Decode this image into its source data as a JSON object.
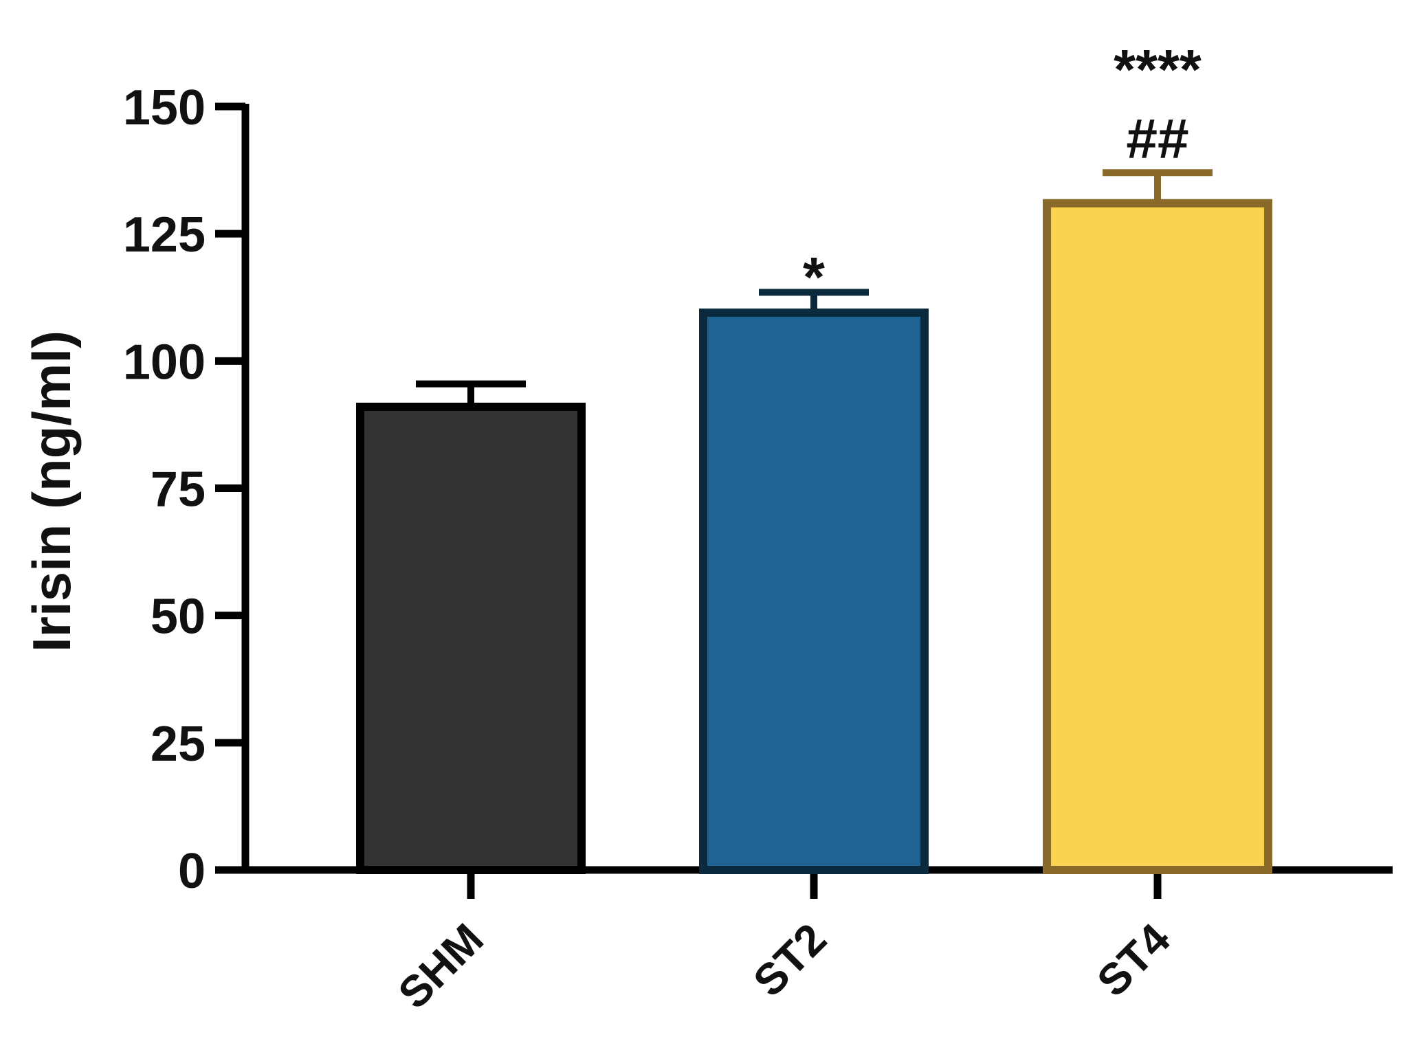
{
  "chart_data": {
    "type": "bar",
    "ylabel": "Irisin (ng/ml)",
    "xlabel": "",
    "ylim": [
      0,
      150
    ],
    "yticks": [
      "0",
      "25",
      "50",
      "75",
      "100",
      "125",
      "150"
    ],
    "grid": false,
    "categories": [
      "SHM",
      "ST2",
      "ST4"
    ],
    "values": [
      91,
      109.5,
      131
    ],
    "errors": [
      4.5,
      4,
      6
    ],
    "annotations": [
      {
        "category": "SHM",
        "lines": []
      },
      {
        "category": "ST2",
        "lines": [
          "*"
        ]
      },
      {
        "category": "ST4",
        "lines": [
          "****",
          "##"
        ]
      }
    ],
    "colors": {
      "fills": [
        "#333333",
        "#1f6393",
        "#f9d250"
      ],
      "outlines": [
        "#000000",
        "#0b2a3d",
        "#8a6a2a"
      ]
    }
  }
}
